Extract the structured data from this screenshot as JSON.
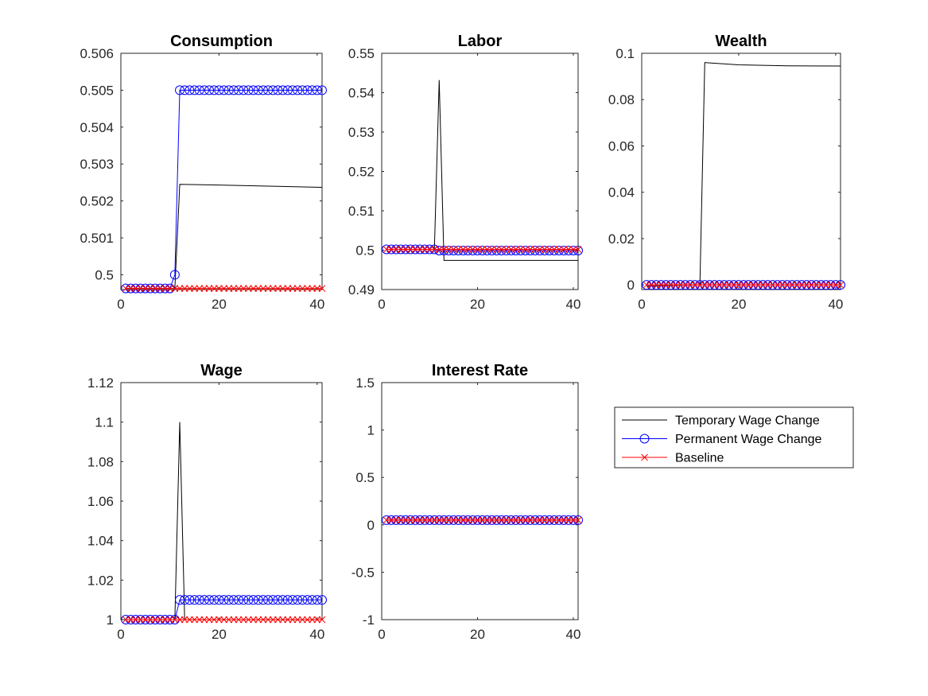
{
  "colors": {
    "temporary": "#000000",
    "permanent": "#0000ff",
    "baseline": "#ff0000"
  },
  "legend": {
    "entries": [
      {
        "label": "Temporary Wage Change",
        "series": "temporary",
        "marker": "none"
      },
      {
        "label": "Permanent Wage Change",
        "series": "permanent",
        "marker": "circle"
      },
      {
        "label": "Baseline",
        "series": "baseline",
        "marker": "cross"
      }
    ]
  },
  "chart_data": [
    {
      "type": "line",
      "title": "Consumption",
      "xlim": [
        0,
        41
      ],
      "ylim": [
        0.4996,
        0.506
      ],
      "xticks": [
        0,
        20,
        40
      ],
      "yticks": [
        0.5,
        0.501,
        0.502,
        0.503,
        0.504,
        0.505,
        0.506
      ],
      "ytick_labels": [
        "0.5",
        "0.501",
        "0.502",
        "0.503",
        "0.504",
        "0.505",
        "0.506"
      ],
      "x": [
        1,
        41
      ],
      "series": [
        {
          "name": "Temporary Wage Change",
          "key": "temporary",
          "points": [
            [
              1,
              0.49963
            ],
            [
              10,
              0.49963
            ],
            [
              11,
              0.49963
            ],
            [
              12,
              0.50245
            ],
            [
              20,
              0.50243
            ],
            [
              30,
              0.5024
            ],
            [
              41,
              0.50237
            ]
          ]
        },
        {
          "name": "Permanent Wage Change",
          "key": "permanent",
          "constant_before": 0.49963,
          "jump_at": 11,
          "value_at_jump": 0.5,
          "constant_after": 0.505
        },
        {
          "name": "Baseline",
          "key": "baseline",
          "constant": 0.49963
        }
      ]
    },
    {
      "type": "line",
      "title": "Labor",
      "xlim": [
        0,
        41
      ],
      "ylim": [
        0.49,
        0.55
      ],
      "xticks": [
        0,
        20,
        40
      ],
      "yticks": [
        0.49,
        0.5,
        0.51,
        0.52,
        0.53,
        0.54,
        0.55
      ],
      "ytick_labels": [
        "0.49",
        "0.5",
        "0.51",
        "0.52",
        "0.53",
        "0.54",
        "0.55"
      ],
      "x": [
        1,
        41
      ],
      "series": [
        {
          "name": "Temporary Wage Change",
          "key": "temporary",
          "points": [
            [
              1,
              0.5002
            ],
            [
              11,
              0.5002
            ],
            [
              12,
              0.5432
            ],
            [
              13,
              0.4974
            ],
            [
              41,
              0.4974
            ]
          ]
        },
        {
          "name": "Permanent Wage Change",
          "key": "permanent",
          "constant_before": 0.5002,
          "jump_at": 11,
          "value_at_jump": 0.5002,
          "constant_after": 0.4999
        },
        {
          "name": "Baseline",
          "key": "baseline",
          "constant": 0.5002
        }
      ]
    },
    {
      "type": "line",
      "title": "Wealth",
      "xlim": [
        0,
        41
      ],
      "ylim": [
        -0.002,
        0.1
      ],
      "xticks": [
        0,
        20,
        40
      ],
      "yticks": [
        0,
        0.02,
        0.04,
        0.06,
        0.08,
        0.1
      ],
      "ytick_labels": [
        "0",
        "0.02",
        "0.04",
        "0.06",
        "0.08",
        "0.1"
      ],
      "x": [
        1,
        41
      ],
      "series": [
        {
          "name": "Temporary Wage Change",
          "key": "temporary",
          "points": [
            [
              1,
              -0.0005
            ],
            [
              12,
              0.0001
            ],
            [
              13,
              0.096
            ],
            [
              20,
              0.095
            ],
            [
              30,
              0.0946
            ],
            [
              41,
              0.0945
            ]
          ]
        },
        {
          "name": "Permanent Wage Change",
          "key": "permanent",
          "constant_before": 0,
          "jump_at": 11,
          "value_at_jump": 0,
          "constant_after": 0
        },
        {
          "name": "Baseline",
          "key": "baseline",
          "constant": 0
        }
      ]
    },
    {
      "type": "line",
      "title": "Wage",
      "xlim": [
        0,
        41
      ],
      "ylim": [
        1,
        1.12
      ],
      "xticks": [
        0,
        20,
        40
      ],
      "yticks": [
        1,
        1.02,
        1.04,
        1.06,
        1.08,
        1.1,
        1.12
      ],
      "ytick_labels": [
        "1",
        "1.02",
        "1.04",
        "1.06",
        "1.08",
        "1.1",
        "1.12"
      ],
      "x": [
        1,
        41
      ],
      "series": [
        {
          "name": "Temporary Wage Change",
          "key": "temporary",
          "points": [
            [
              1,
              1
            ],
            [
              11,
              1
            ],
            [
              12,
              1.1
            ],
            [
              13,
              1
            ],
            [
              41,
              1
            ]
          ]
        },
        {
          "name": "Permanent Wage Change",
          "key": "permanent",
          "constant_before": 1,
          "jump_at": 11,
          "value_at_jump": 1,
          "constant_after": 1.01
        },
        {
          "name": "Baseline",
          "key": "baseline",
          "constant": 1
        }
      ]
    },
    {
      "type": "line",
      "title": "Interest Rate",
      "xlim": [
        0,
        41
      ],
      "ylim": [
        -1,
        1.5
      ],
      "xticks": [
        0,
        20,
        40
      ],
      "yticks": [
        -1,
        -0.5,
        0,
        0.5,
        1,
        1.5
      ],
      "ytick_labels": [
        "-1",
        "-0.5",
        "0",
        "0.5",
        "1",
        "1.5"
      ],
      "x": [
        1,
        41
      ],
      "series": [
        {
          "name": "Temporary Wage Change",
          "key": "temporary",
          "points": [
            [
              1,
              0.05
            ],
            [
              41,
              0.05
            ]
          ]
        },
        {
          "name": "Permanent Wage Change",
          "key": "permanent",
          "constant_before": 0.05,
          "jump_at": 11,
          "value_at_jump": 0.05,
          "constant_after": 0.05
        },
        {
          "name": "Baseline",
          "key": "baseline",
          "constant": 0.05
        }
      ]
    }
  ]
}
